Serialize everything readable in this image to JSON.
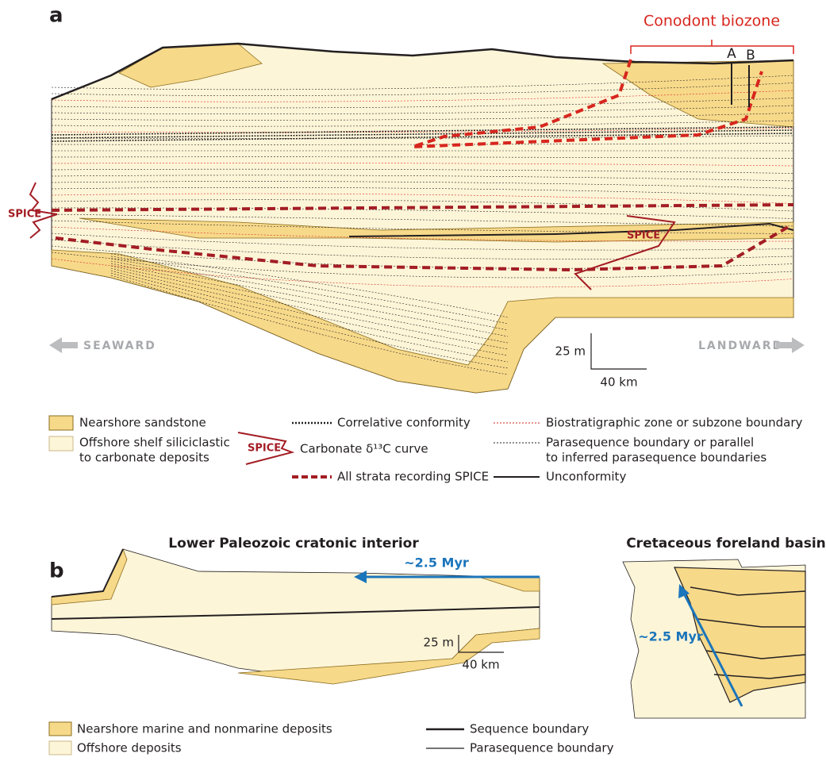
{
  "panel_a": {
    "label": "a",
    "conodont_label": "Conodont biozone",
    "sections": [
      "A",
      "B"
    ],
    "spice_left": "SPICE",
    "spice_center": "SPICE",
    "seaward": "SEAWARD",
    "landward": "LANDWARD",
    "scale_vertical": "25 m",
    "scale_horizontal": "40 km",
    "legend": {
      "nearshore": "Nearshore sandstone",
      "offshore": [
        "Offshore shelf siliciclastic",
        "to carbonate deposits"
      ],
      "correlative": "Correlative conformity",
      "spice_swatch": "SPICE",
      "carbonate": "Carbonate δ¹³C curve",
      "all_strata": "All strata recording SPICE",
      "biostrat": "Biostratigraphic zone or subzone boundary",
      "parasequence": [
        "Parasequence boundary or parallel",
        "to inferred parasequence boundaries"
      ],
      "unconformity": "Unconformity"
    }
  },
  "panel_b": {
    "label": "b",
    "title_left": "Lower Paleozoic cratonic interior",
    "title_right": "Cretaceous foreland basin",
    "duration_left": "~2.5 Myr",
    "duration_right": "~2.5 Myr",
    "scale_vertical": "25 m",
    "scale_horizontal": "40 km",
    "legend": {
      "nearshore": "Nearshore marine and nonmarine deposits",
      "offshore": "Offshore deposits",
      "sequence": "Sequence boundary",
      "parasequence": "Parasequence boundary"
    }
  }
}
